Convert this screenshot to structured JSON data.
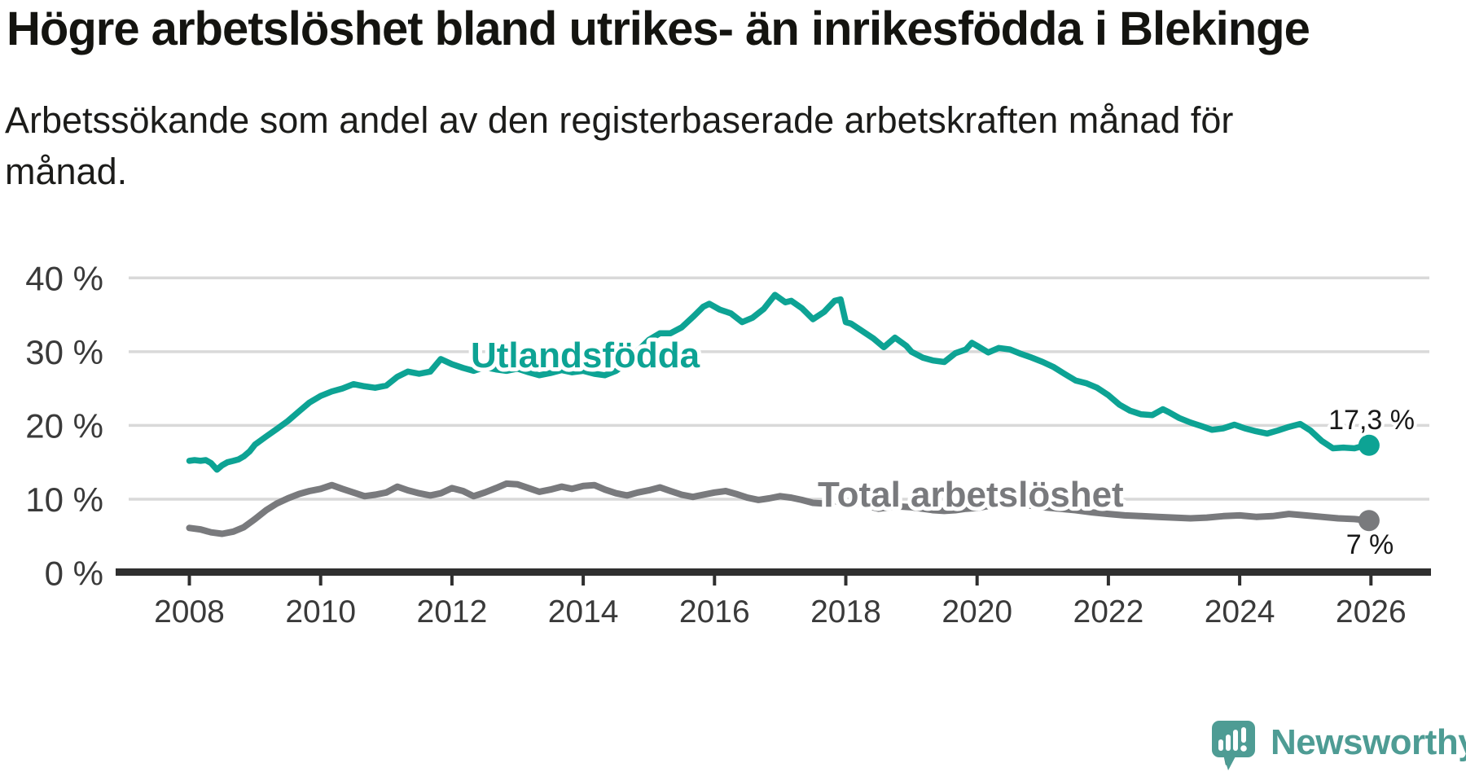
{
  "page": {
    "title": "Högre arbetslöshet bland utrikes- än inrikesfödda i Blekinge",
    "subtitle_lines": [
      "Arbetssökande som andel av den registerbaserade arbetskraften månad för",
      "månad."
    ]
  },
  "branding": {
    "name": "Newsworthy",
    "logo_icon": "speech-bubble-bar-chart-icon",
    "color": "#4e9c94"
  },
  "colors": {
    "teal_line": "#0da394",
    "gray_line": "#797a7d",
    "grid": "#d9d9d9",
    "axis": "#2f2f2f",
    "title_text": "#141410",
    "tick_text": "#3a3a3a",
    "annotation_text": "#191919"
  },
  "chart_data": {
    "type": "line",
    "title": "Högre arbetslöshet bland utrikes- än inrikesfödda i Blekinge",
    "subtitle": "Arbetssökande som andel av den registerbaserade arbetskraften månad för månad.",
    "unit": "percent",
    "grid": "horizontal",
    "legend_position": "inline-labels",
    "xlim": [
      2008,
      2026
    ],
    "ylim": [
      0,
      43
    ],
    "x_axis": {
      "ticks": [
        2008,
        2010,
        2012,
        2014,
        2016,
        2018,
        2020,
        2022,
        2024,
        2026
      ]
    },
    "y_axis": {
      "ticks": [
        {
          "value": 0,
          "label": "0 %"
        },
        {
          "value": 10,
          "label": "10 %"
        },
        {
          "value": 20,
          "label": "20 %"
        },
        {
          "value": 30,
          "label": "30 %"
        },
        {
          "value": 40,
          "label": "40 %"
        }
      ]
    },
    "series": [
      {
        "name": "Utlandsfödda",
        "color": "#0da394",
        "end_label": "17,3 %",
        "end_value": 17.3,
        "points": [
          [
            2008.0,
            15.2
          ],
          [
            2008.08,
            15.3
          ],
          [
            2008.17,
            15.2
          ],
          [
            2008.25,
            15.3
          ],
          [
            2008.33,
            14.9
          ],
          [
            2008.42,
            14.0
          ],
          [
            2008.5,
            14.6
          ],
          [
            2008.58,
            15.0
          ],
          [
            2008.67,
            15.2
          ],
          [
            2008.75,
            15.4
          ],
          [
            2008.83,
            15.8
          ],
          [
            2008.92,
            16.5
          ],
          [
            2009.0,
            17.4
          ],
          [
            2009.17,
            18.5
          ],
          [
            2009.33,
            19.5
          ],
          [
            2009.5,
            20.6
          ],
          [
            2009.67,
            21.9
          ],
          [
            2009.83,
            23.1
          ],
          [
            2010.0,
            24.0
          ],
          [
            2010.17,
            24.6
          ],
          [
            2010.33,
            25.0
          ],
          [
            2010.5,
            25.6
          ],
          [
            2010.67,
            25.3
          ],
          [
            2010.83,
            25.1
          ],
          [
            2011.0,
            25.4
          ],
          [
            2011.17,
            26.6
          ],
          [
            2011.33,
            27.3
          ],
          [
            2011.5,
            27.0
          ],
          [
            2011.67,
            27.3
          ],
          [
            2011.83,
            29.0
          ],
          [
            2012.0,
            28.3
          ],
          [
            2012.17,
            27.8
          ],
          [
            2012.33,
            27.4
          ],
          [
            2012.5,
            27.9
          ],
          [
            2012.67,
            27.6
          ],
          [
            2012.83,
            27.4
          ],
          [
            2013.0,
            27.7
          ],
          [
            2013.17,
            27.2
          ],
          [
            2013.33,
            26.8
          ],
          [
            2013.5,
            27.1
          ],
          [
            2013.67,
            27.5
          ],
          [
            2013.83,
            27.2
          ],
          [
            2014.0,
            27.4
          ],
          [
            2014.17,
            27.0
          ],
          [
            2014.33,
            26.8
          ],
          [
            2014.5,
            27.4
          ],
          [
            2014.67,
            28.5
          ],
          [
            2014.83,
            30.1
          ],
          [
            2015.0,
            31.6
          ],
          [
            2015.17,
            32.5
          ],
          [
            2015.33,
            32.5
          ],
          [
            2015.5,
            33.3
          ],
          [
            2015.67,
            34.7
          ],
          [
            2015.83,
            36.1
          ],
          [
            2015.92,
            36.5
          ],
          [
            2016.08,
            35.7
          ],
          [
            2016.25,
            35.2
          ],
          [
            2016.42,
            34.0
          ],
          [
            2016.58,
            34.6
          ],
          [
            2016.75,
            35.8
          ],
          [
            2016.92,
            37.7
          ],
          [
            2017.08,
            36.7
          ],
          [
            2017.17,
            36.9
          ],
          [
            2017.33,
            35.9
          ],
          [
            2017.5,
            34.4
          ],
          [
            2017.67,
            35.4
          ],
          [
            2017.83,
            36.9
          ],
          [
            2017.92,
            37.1
          ],
          [
            2018.0,
            34.0
          ],
          [
            2018.08,
            33.8
          ],
          [
            2018.25,
            32.8
          ],
          [
            2018.42,
            31.8
          ],
          [
            2018.58,
            30.6
          ],
          [
            2018.75,
            31.9
          ],
          [
            2018.92,
            30.8
          ],
          [
            2019.0,
            30.0
          ],
          [
            2019.17,
            29.2
          ],
          [
            2019.33,
            28.8
          ],
          [
            2019.5,
            28.6
          ],
          [
            2019.67,
            29.8
          ],
          [
            2019.83,
            30.3
          ],
          [
            2019.92,
            31.2
          ],
          [
            2020.0,
            30.8
          ],
          [
            2020.17,
            29.9
          ],
          [
            2020.33,
            30.5
          ],
          [
            2020.5,
            30.3
          ],
          [
            2020.67,
            29.7
          ],
          [
            2020.83,
            29.2
          ],
          [
            2021.0,
            28.6
          ],
          [
            2021.17,
            27.9
          ],
          [
            2021.33,
            27.0
          ],
          [
            2021.5,
            26.1
          ],
          [
            2021.67,
            25.7
          ],
          [
            2021.83,
            25.1
          ],
          [
            2022.0,
            24.1
          ],
          [
            2022.17,
            22.8
          ],
          [
            2022.33,
            22.0
          ],
          [
            2022.5,
            21.5
          ],
          [
            2022.67,
            21.4
          ],
          [
            2022.83,
            22.2
          ],
          [
            2022.92,
            21.8
          ],
          [
            2023.08,
            21.0
          ],
          [
            2023.25,
            20.4
          ],
          [
            2023.42,
            19.9
          ],
          [
            2023.58,
            19.4
          ],
          [
            2023.75,
            19.6
          ],
          [
            2023.92,
            20.1
          ],
          [
            2024.08,
            19.6
          ],
          [
            2024.25,
            19.2
          ],
          [
            2024.42,
            18.9
          ],
          [
            2024.58,
            19.3
          ],
          [
            2024.75,
            19.8
          ],
          [
            2024.92,
            20.2
          ],
          [
            2025.08,
            19.3
          ],
          [
            2025.25,
            17.9
          ],
          [
            2025.42,
            16.9
          ],
          [
            2025.58,
            17.0
          ],
          [
            2025.75,
            16.9
          ],
          [
            2025.83,
            17.1
          ],
          [
            2025.97,
            17.3
          ]
        ]
      },
      {
        "name": "Total arbetslöshet",
        "color": "#797a7d",
        "end_label": "7 %",
        "end_value": 7.1,
        "points": [
          [
            2008.0,
            6.1
          ],
          [
            2008.17,
            5.9
          ],
          [
            2008.33,
            5.5
          ],
          [
            2008.5,
            5.3
          ],
          [
            2008.67,
            5.6
          ],
          [
            2008.83,
            6.2
          ],
          [
            2009.0,
            7.3
          ],
          [
            2009.17,
            8.5
          ],
          [
            2009.33,
            9.4
          ],
          [
            2009.5,
            10.1
          ],
          [
            2009.67,
            10.7
          ],
          [
            2009.83,
            11.1
          ],
          [
            2010.0,
            11.4
          ],
          [
            2010.17,
            11.9
          ],
          [
            2010.33,
            11.4
          ],
          [
            2010.5,
            10.9
          ],
          [
            2010.67,
            10.4
          ],
          [
            2010.83,
            10.6
          ],
          [
            2011.0,
            10.9
          ],
          [
            2011.17,
            11.7
          ],
          [
            2011.33,
            11.2
          ],
          [
            2011.5,
            10.8
          ],
          [
            2011.67,
            10.5
          ],
          [
            2011.83,
            10.8
          ],
          [
            2012.0,
            11.5
          ],
          [
            2012.17,
            11.1
          ],
          [
            2012.33,
            10.4
          ],
          [
            2012.5,
            10.9
          ],
          [
            2012.67,
            11.5
          ],
          [
            2012.83,
            12.1
          ],
          [
            2013.0,
            12.0
          ],
          [
            2013.17,
            11.5
          ],
          [
            2013.33,
            11.0
          ],
          [
            2013.5,
            11.3
          ],
          [
            2013.67,
            11.7
          ],
          [
            2013.83,
            11.4
          ],
          [
            2014.0,
            11.8
          ],
          [
            2014.17,
            11.9
          ],
          [
            2014.33,
            11.3
          ],
          [
            2014.5,
            10.8
          ],
          [
            2014.67,
            10.5
          ],
          [
            2014.83,
            10.9
          ],
          [
            2015.0,
            11.2
          ],
          [
            2015.17,
            11.6
          ],
          [
            2015.33,
            11.1
          ],
          [
            2015.5,
            10.6
          ],
          [
            2015.67,
            10.3
          ],
          [
            2015.83,
            10.6
          ],
          [
            2016.0,
            10.9
          ],
          [
            2016.17,
            11.1
          ],
          [
            2016.33,
            10.7
          ],
          [
            2016.5,
            10.2
          ],
          [
            2016.67,
            9.9
          ],
          [
            2016.83,
            10.1
          ],
          [
            2017.0,
            10.4
          ],
          [
            2017.17,
            10.2
          ],
          [
            2017.33,
            9.9
          ],
          [
            2017.5,
            9.5
          ],
          [
            2017.67,
            9.4
          ],
          [
            2017.83,
            9.7
          ],
          [
            2018.0,
            9.8
          ],
          [
            2018.17,
            9.5
          ],
          [
            2018.33,
            9.1
          ],
          [
            2018.5,
            8.7
          ],
          [
            2018.67,
            8.9
          ],
          [
            2018.83,
            9.0
          ],
          [
            2019.0,
            8.9
          ],
          [
            2019.17,
            8.7
          ],
          [
            2019.33,
            8.5
          ],
          [
            2019.5,
            8.4
          ],
          [
            2019.67,
            8.5
          ],
          [
            2019.83,
            8.7
          ],
          [
            2020.0,
            8.8
          ],
          [
            2020.25,
            9.2
          ],
          [
            2020.5,
            9.5
          ],
          [
            2020.75,
            9.2
          ],
          [
            2021.0,
            8.9
          ],
          [
            2021.25,
            8.7
          ],
          [
            2021.5,
            8.5
          ],
          [
            2021.75,
            8.2
          ],
          [
            2022.0,
            8.0
          ],
          [
            2022.25,
            7.8
          ],
          [
            2022.5,
            7.7
          ],
          [
            2022.75,
            7.6
          ],
          [
            2023.0,
            7.5
          ],
          [
            2023.25,
            7.4
          ],
          [
            2023.5,
            7.5
          ],
          [
            2023.75,
            7.7
          ],
          [
            2024.0,
            7.8
          ],
          [
            2024.25,
            7.6
          ],
          [
            2024.5,
            7.7
          ],
          [
            2024.75,
            8.0
          ],
          [
            2025.0,
            7.8
          ],
          [
            2025.25,
            7.6
          ],
          [
            2025.5,
            7.4
          ],
          [
            2025.75,
            7.3
          ],
          [
            2025.97,
            7.1
          ]
        ]
      }
    ]
  }
}
